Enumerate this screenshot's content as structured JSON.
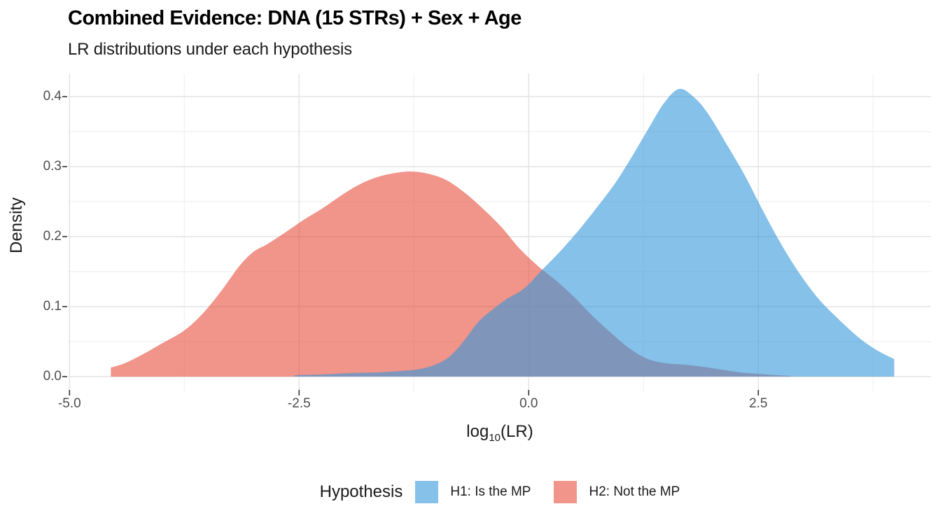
{
  "chart_data": {
    "type": "area",
    "title": "Combined Evidence: DNA (15 STRs) + Sex + Age",
    "subtitle": "LR distributions under each hypothesis",
    "ylabel": "Density",
    "xlabel": {
      "main": "log",
      "sub": "10",
      "tail": "(LR)"
    },
    "grid": true,
    "legend_position": "bottom",
    "x_axis": {
      "lim": [
        -5.01,
        4.38
      ],
      "ticks": [
        -5.0,
        -2.5,
        0.0,
        2.5
      ],
      "tick_labels": [
        "-5.0",
        "-2.5",
        "0.0",
        "2.5"
      ],
      "minor_ticks": [
        -3.75,
        -1.25,
        1.25,
        3.75
      ]
    },
    "y_axis": {
      "lim": [
        -0.021,
        0.433
      ],
      "ticks": [
        0.0,
        0.1,
        0.2,
        0.3,
        0.4
      ],
      "tick_labels": [
        "0.0",
        "0.1",
        "0.2",
        "0.3",
        "0.4"
      ],
      "minor_ticks": [
        0.05,
        0.15,
        0.25,
        0.35
      ]
    },
    "legend": {
      "title": "Hypothesis",
      "entries": [
        {
          "label": "H1: Is the MP",
          "color": "#3498DB",
          "opacity": 0.6
        },
        {
          "label": "H2: Not the MP",
          "color": "#E74C3C",
          "opacity": 0.6
        }
      ]
    },
    "series": [
      {
        "name": "H2: Not the MP",
        "hypothesis": "H2",
        "color": "#E74C3C",
        "opacity": 0.6,
        "points": [
          [
            -4.55,
            0.013
          ],
          [
            -4.4,
            0.019
          ],
          [
            -4.2,
            0.032
          ],
          [
            -4.0,
            0.047
          ],
          [
            -3.75,
            0.066
          ],
          [
            -3.55,
            0.09
          ],
          [
            -3.35,
            0.122
          ],
          [
            -3.15,
            0.158
          ],
          [
            -3.0,
            0.178
          ],
          [
            -2.85,
            0.189
          ],
          [
            -2.65,
            0.206
          ],
          [
            -2.45,
            0.224
          ],
          [
            -2.25,
            0.24
          ],
          [
            -2.05,
            0.258
          ],
          [
            -1.85,
            0.274
          ],
          [
            -1.65,
            0.285
          ],
          [
            -1.45,
            0.291
          ],
          [
            -1.28,
            0.293
          ],
          [
            -1.1,
            0.29
          ],
          [
            -0.9,
            0.281
          ],
          [
            -0.7,
            0.263
          ],
          [
            -0.5,
            0.24
          ],
          [
            -0.3,
            0.214
          ],
          [
            -0.1,
            0.183
          ],
          [
            0.1,
            0.158
          ],
          [
            0.3,
            0.137
          ],
          [
            0.5,
            0.113
          ],
          [
            0.7,
            0.086
          ],
          [
            0.9,
            0.062
          ],
          [
            1.1,
            0.04
          ],
          [
            1.3,
            0.025
          ],
          [
            1.5,
            0.019
          ],
          [
            1.7,
            0.017
          ],
          [
            1.9,
            0.014
          ],
          [
            2.1,
            0.01
          ],
          [
            2.3,
            0.006
          ],
          [
            2.5,
            0.004
          ],
          [
            2.7,
            0.002
          ],
          [
            2.85,
            0.001
          ]
        ]
      },
      {
        "name": "H1: Is the MP",
        "hypothesis": "H1",
        "color": "#3498DB",
        "opacity": 0.6,
        "points": [
          [
            -2.55,
            0.002
          ],
          [
            -2.25,
            0.003
          ],
          [
            -1.95,
            0.005
          ],
          [
            -1.65,
            0.006
          ],
          [
            -1.4,
            0.008
          ],
          [
            -1.18,
            0.011
          ],
          [
            -1.0,
            0.018
          ],
          [
            -0.85,
            0.03
          ],
          [
            -0.7,
            0.052
          ],
          [
            -0.55,
            0.078
          ],
          [
            -0.42,
            0.093
          ],
          [
            -0.25,
            0.11
          ],
          [
            -0.05,
            0.126
          ],
          [
            0.15,
            0.153
          ],
          [
            0.35,
            0.18
          ],
          [
            0.55,
            0.21
          ],
          [
            0.75,
            0.243
          ],
          [
            0.95,
            0.278
          ],
          [
            1.15,
            0.32
          ],
          [
            1.32,
            0.358
          ],
          [
            1.48,
            0.392
          ],
          [
            1.64,
            0.411
          ],
          [
            1.8,
            0.399
          ],
          [
            1.95,
            0.376
          ],
          [
            2.15,
            0.333
          ],
          [
            2.35,
            0.288
          ],
          [
            2.55,
            0.237
          ],
          [
            2.75,
            0.189
          ],
          [
            2.95,
            0.147
          ],
          [
            3.15,
            0.112
          ],
          [
            3.35,
            0.085
          ],
          [
            3.6,
            0.055
          ],
          [
            3.8,
            0.037
          ],
          [
            3.98,
            0.025
          ]
        ]
      }
    ],
    "style": {
      "major_grid_color": "#e3e3e3",
      "minor_grid_color": "#f0f0f0",
      "tick_mark_color": "#333333",
      "background": "#ffffff"
    }
  }
}
